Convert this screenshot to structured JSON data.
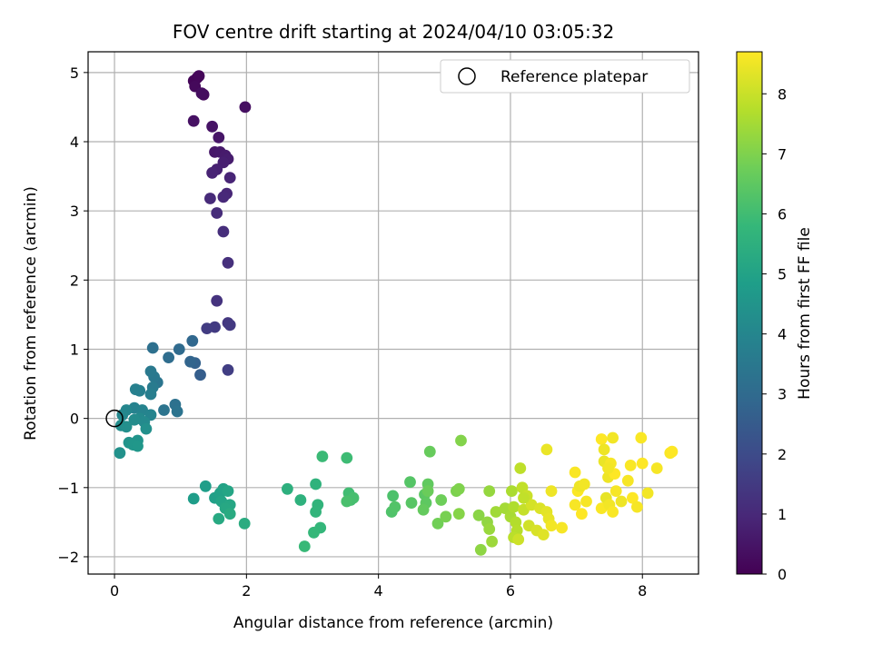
{
  "chart_data": {
    "type": "scatter",
    "title": "FOV centre drift starting at 2024/04/10 03:05:32",
    "xlabel": "Angular distance from reference (arcmin)",
    "ylabel": "Rotation from reference (arcmin)",
    "xlim": [
      -0.4,
      8.85
    ],
    "ylim": [
      -2.25,
      5.3
    ],
    "xticks": [
      0,
      2,
      4,
      6,
      8
    ],
    "yticks": [
      -2,
      -1,
      0,
      1,
      2,
      3,
      4,
      5
    ],
    "grid": true,
    "legend": {
      "placement": "top-right",
      "entries": [
        "Reference platepar"
      ]
    },
    "reference_point": {
      "x": 0,
      "y": 0,
      "marker": "open-circle",
      "color": "#000000"
    },
    "colorbar": {
      "label": "Hours from first FF file",
      "range": [
        0,
        8.7
      ],
      "ticks": [
        0,
        1,
        2,
        3,
        4,
        5,
        6,
        7,
        8
      ],
      "colormap": "viridis",
      "stops": [
        "#440154",
        "#482878",
        "#3e4989",
        "#31688e",
        "#26828e",
        "#1f9e89",
        "#35b779",
        "#6ece58",
        "#b5de2b",
        "#fde725"
      ]
    },
    "points": [
      [
        1.25,
        4.92,
        0.05
      ],
      [
        1.2,
        4.88,
        0.1
      ],
      [
        1.28,
        4.95,
        0.15
      ],
      [
        1.22,
        4.8,
        0.2
      ],
      [
        1.35,
        4.68,
        0.25
      ],
      [
        1.32,
        4.7,
        0.3
      ],
      [
        1.98,
        4.5,
        0.35
      ],
      [
        1.2,
        4.3,
        0.4
      ],
      [
        1.48,
        4.22,
        0.45
      ],
      [
        1.58,
        4.06,
        0.5
      ],
      [
        1.52,
        3.85,
        0.55
      ],
      [
        1.6,
        3.85,
        0.6
      ],
      [
        1.68,
        3.8,
        0.65
      ],
      [
        1.72,
        3.75,
        0.7
      ],
      [
        1.65,
        3.7,
        0.75
      ],
      [
        1.55,
        3.6,
        0.8
      ],
      [
        1.48,
        3.55,
        0.85
      ],
      [
        1.75,
        3.48,
        0.9
      ],
      [
        1.7,
        3.25,
        0.95
      ],
      [
        1.65,
        3.2,
        1.0
      ],
      [
        1.45,
        3.18,
        1.05
      ],
      [
        1.55,
        2.97,
        1.1
      ],
      [
        1.65,
        2.7,
        1.15
      ],
      [
        1.72,
        2.25,
        1.2
      ],
      [
        1.55,
        1.7,
        1.3
      ],
      [
        1.72,
        1.38,
        1.4
      ],
      [
        1.75,
        1.35,
        1.45
      ],
      [
        1.52,
        1.32,
        1.5
      ],
      [
        1.4,
        1.3,
        1.55
      ],
      [
        1.72,
        0.7,
        1.6
      ],
      [
        1.3,
        0.63,
        2.6
      ],
      [
        1.22,
        0.8,
        2.7
      ],
      [
        1.15,
        0.82,
        2.8
      ],
      [
        1.18,
        1.12,
        2.9
      ],
      [
        0.98,
        1.0,
        3.0
      ],
      [
        0.82,
        0.88,
        3.1
      ],
      [
        0.58,
        1.02,
        3.2
      ],
      [
        0.92,
        0.2,
        3.25
      ],
      [
        0.95,
        0.1,
        3.3
      ],
      [
        0.75,
        0.12,
        3.35
      ],
      [
        0.65,
        0.52,
        3.4
      ],
      [
        0.6,
        0.6,
        3.5
      ],
      [
        0.55,
        0.68,
        3.55
      ],
      [
        0.58,
        0.45,
        3.6
      ],
      [
        0.55,
        0.35,
        3.7
      ],
      [
        0.38,
        0.4,
        3.75
      ],
      [
        0.32,
        0.42,
        3.8
      ],
      [
        0.3,
        0.15,
        3.85
      ],
      [
        0.42,
        0.12,
        3.9
      ],
      [
        0.55,
        0.05,
        3.95
      ],
      [
        0.18,
        0.12,
        4.0
      ],
      [
        0.12,
        0.05,
        4.05
      ],
      [
        0.38,
        0.0,
        4.1
      ],
      [
        0.45,
        -0.05,
        4.15
      ],
      [
        0.3,
        -0.02,
        4.2
      ],
      [
        0.1,
        -0.1,
        4.25
      ],
      [
        0.18,
        -0.12,
        4.3
      ],
      [
        0.48,
        -0.15,
        4.35
      ],
      [
        0.08,
        -0.5,
        4.4
      ],
      [
        0.22,
        -0.35,
        4.45
      ],
      [
        0.35,
        -0.32,
        4.5
      ],
      [
        0.28,
        -0.38,
        4.55
      ],
      [
        0.35,
        -0.4,
        4.6
      ],
      [
        1.2,
        -1.16,
        4.8
      ],
      [
        1.38,
        -0.98,
        4.85
      ],
      [
        1.52,
        -1.15,
        4.9
      ],
      [
        1.6,
        -1.08,
        4.95
      ],
      [
        1.65,
        -1.02,
        5.0
      ],
      [
        1.62,
        -1.2,
        5.05
      ],
      [
        1.72,
        -1.05,
        5.1
      ],
      [
        1.75,
        -1.25,
        5.15
      ],
      [
        1.68,
        -1.3,
        5.2
      ],
      [
        1.58,
        -1.45,
        5.25
      ],
      [
        1.75,
        -1.38,
        5.3
      ],
      [
        1.97,
        -1.52,
        5.35
      ],
      [
        2.62,
        -1.02,
        5.5
      ],
      [
        2.82,
        -1.18,
        5.55
      ],
      [
        3.05,
        -0.95,
        5.6
      ],
      [
        3.08,
        -1.25,
        5.65
      ],
      [
        3.05,
        -1.35,
        5.7
      ],
      [
        3.12,
        -1.58,
        5.75
      ],
      [
        3.02,
        -1.65,
        5.8
      ],
      [
        2.88,
        -1.85,
        5.85
      ],
      [
        3.15,
        -0.55,
        5.9
      ],
      [
        3.52,
        -0.57,
        5.95
      ],
      [
        3.55,
        -1.08,
        6.0
      ],
      [
        3.58,
        -1.18,
        6.05
      ],
      [
        3.62,
        -1.15,
        6.1
      ],
      [
        3.52,
        -1.2,
        6.15
      ],
      [
        4.22,
        -1.12,
        6.2
      ],
      [
        4.2,
        -1.35,
        6.25
      ],
      [
        4.25,
        -1.28,
        6.3
      ],
      [
        4.48,
        -0.92,
        6.35
      ],
      [
        4.5,
        -1.22,
        6.4
      ],
      [
        4.7,
        -1.1,
        6.45
      ],
      [
        4.72,
        -1.22,
        6.5
      ],
      [
        4.75,
        -0.95,
        6.55
      ],
      [
        4.68,
        -1.32,
        6.6
      ],
      [
        4.78,
        -0.48,
        6.65
      ],
      [
        4.75,
        -1.05,
        6.7
      ],
      [
        4.95,
        -1.18,
        6.75
      ],
      [
        4.9,
        -1.52,
        6.8
      ],
      [
        5.02,
        -1.42,
        6.9
      ],
      [
        5.18,
        -1.05,
        6.95
      ],
      [
        5.22,
        -1.02,
        7.0
      ],
      [
        5.25,
        -0.32,
        7.05
      ],
      [
        5.22,
        -1.38,
        7.1
      ],
      [
        5.52,
        -1.4,
        7.15
      ],
      [
        5.55,
        -1.9,
        7.2
      ],
      [
        5.65,
        -1.5,
        7.25
      ],
      [
        5.68,
        -1.05,
        7.3
      ],
      [
        5.68,
        -1.6,
        7.35
      ],
      [
        5.72,
        -1.78,
        7.4
      ],
      [
        5.78,
        -1.35,
        7.45
      ],
      [
        5.92,
        -1.3,
        7.5
      ],
      [
        6.0,
        -1.42,
        7.55
      ],
      [
        6.02,
        -1.05,
        7.6
      ],
      [
        6.05,
        -1.28,
        7.65
      ],
      [
        6.08,
        -1.5,
        7.7
      ],
      [
        6.1,
        -1.62,
        7.75
      ],
      [
        6.05,
        -1.72,
        7.8
      ],
      [
        6.15,
        -0.72,
        7.85
      ],
      [
        6.18,
        -1.0,
        7.9
      ],
      [
        6.2,
        -1.32,
        7.95
      ],
      [
        6.25,
        -1.12,
        8.0
      ],
      [
        6.12,
        -1.75,
        8.05
      ],
      [
        6.28,
        -1.55,
        8.1
      ],
      [
        6.32,
        -1.25,
        8.15
      ],
      [
        6.4,
        -1.62,
        8.2
      ],
      [
        6.45,
        -1.3,
        8.25
      ],
      [
        6.5,
        -1.68,
        8.3
      ],
      [
        6.55,
        -1.35,
        8.35
      ],
      [
        6.58,
        -1.45,
        8.4
      ],
      [
        6.55,
        -0.45,
        8.45
      ],
      [
        6.62,
        -1.05,
        8.5
      ],
      [
        6.62,
        -1.55,
        8.55
      ],
      [
        6.78,
        -1.58,
        8.6
      ],
      [
        6.98,
        -1.25,
        8.62
      ],
      [
        6.98,
        -0.78,
        8.64
      ],
      [
        7.02,
        -1.05,
        8.66
      ],
      [
        7.05,
        -1.0,
        8.68
      ],
      [
        7.08,
        -1.38,
        8.7
      ],
      [
        7.05,
        -0.98,
        8.5
      ],
      [
        7.12,
        -0.95,
        8.55
      ],
      [
        7.15,
        -1.2,
        8.6
      ],
      [
        7.38,
        -1.3,
        8.65
      ],
      [
        7.38,
        -0.3,
        8.7
      ],
      [
        7.42,
        -0.62,
        8.45
      ],
      [
        7.45,
        -1.15,
        8.4
      ],
      [
        7.48,
        -0.85,
        8.5
      ],
      [
        7.5,
        -1.25,
        8.55
      ],
      [
        7.52,
        -0.65,
        8.6
      ],
      [
        7.55,
        -1.35,
        8.65
      ],
      [
        7.58,
        -0.8,
        8.7
      ],
      [
        7.6,
        -1.05,
        8.6
      ],
      [
        7.55,
        -0.28,
        8.55
      ],
      [
        7.68,
        -1.2,
        8.5
      ],
      [
        7.78,
        -0.9,
        8.6
      ],
      [
        7.82,
        -0.68,
        8.65
      ],
      [
        7.85,
        -1.15,
        8.7
      ],
      [
        7.92,
        -1.28,
        8.6
      ],
      [
        7.98,
        -0.28,
        8.65
      ],
      [
        8.0,
        -0.65,
        8.7
      ],
      [
        8.08,
        -1.08,
        8.55
      ],
      [
        8.22,
        -0.72,
        8.6
      ],
      [
        8.42,
        -0.5,
        8.65
      ],
      [
        8.45,
        -0.48,
        8.7
      ],
      [
        7.42,
        -0.45,
        8.5
      ],
      [
        7.48,
        -0.72,
        8.55
      ],
      [
        6.2,
        -1.15,
        7.9
      ]
    ]
  }
}
